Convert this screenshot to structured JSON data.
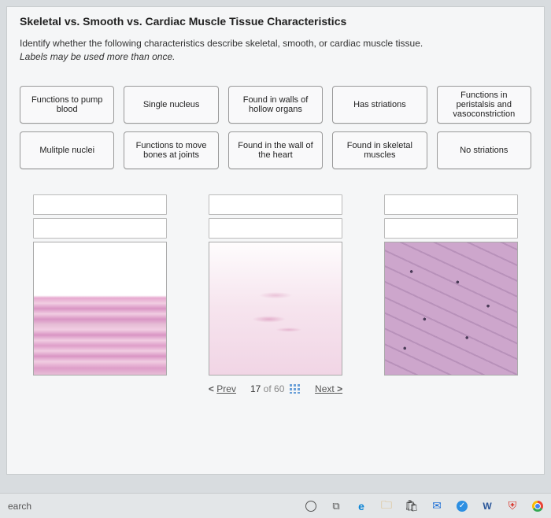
{
  "title": "Skeletal vs. Smooth vs. Cardiac Muscle Tissue Characteristics",
  "instructions_line1": "Identify whether the following characteristics describe skeletal, smooth, or cardiac muscle tissue.",
  "instructions_line2": "Labels may be used more than once.",
  "labels": [
    "Functions to pump blood",
    "Single nucleus",
    "Found in walls of hollow organs",
    "Has striations",
    "Functions in peristalsis and vasoconstriction",
    "Mulitple nuclei",
    "Functions to move bones at joints",
    "Found in the wall of the heart",
    "Found in skeletal muscles",
    "No striations"
  ],
  "pager": {
    "prev": "Prev",
    "next": "Next",
    "current": "17",
    "total": "60",
    "of": "of"
  },
  "taskbar": {
    "search": "earch"
  }
}
